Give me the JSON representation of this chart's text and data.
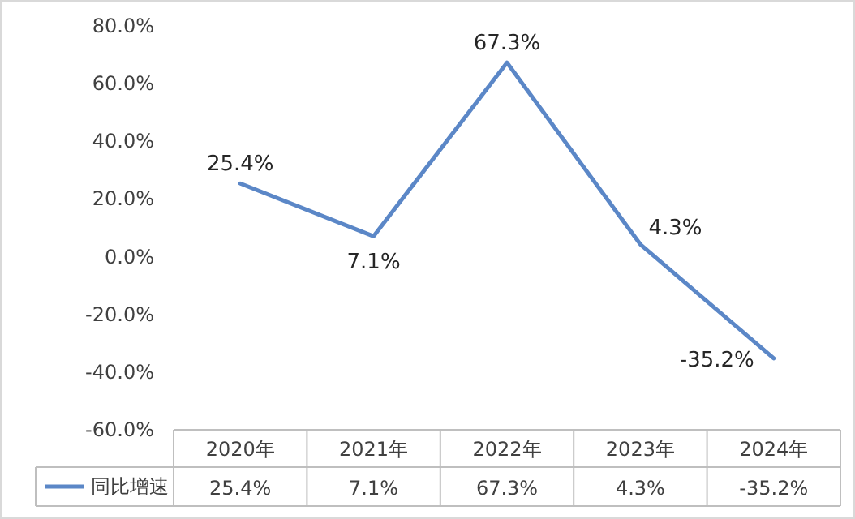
{
  "chart_data": {
    "type": "line",
    "categories": [
      "2020年",
      "2021年",
      "2022年",
      "2023年",
      "2024年"
    ],
    "series": [
      {
        "name": "同比增速",
        "color": "#5b87c7",
        "values": [
          25.4,
          7.1,
          67.3,
          4.3,
          -35.2
        ]
      }
    ],
    "value_labels": [
      "25.4%",
      "7.1%",
      "67.3%",
      "4.3%",
      "-35.2%"
    ],
    "ylim": [
      -60,
      80
    ],
    "yticks": [
      {
        "value": -60,
        "label": "-60.0%"
      },
      {
        "value": -40,
        "label": "-40.0%"
      },
      {
        "value": -20,
        "label": "-20.0%"
      },
      {
        "value": 0,
        "label": "0.0%"
      },
      {
        "value": 20,
        "label": "20.0%"
      },
      {
        "value": 40,
        "label": "40.0%"
      },
      {
        "value": 60,
        "label": "60.0%"
      },
      {
        "value": 80,
        "label": "80.0%"
      }
    ],
    "grid": false,
    "legend": "bottom",
    "marker": "none",
    "line_style": "solid"
  }
}
